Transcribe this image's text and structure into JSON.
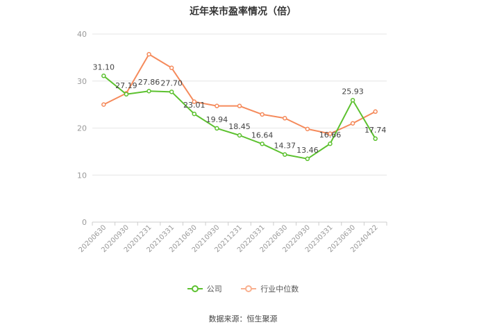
{
  "chart_data": {
    "type": "line",
    "title": "近年来市盈率情况（倍）",
    "categories": [
      "20200630",
      "20200930",
      "20201231",
      "20210331",
      "20210630",
      "20210930",
      "20211231",
      "20220331",
      "20220630",
      "20220930",
      "20230331",
      "20230630",
      "20240422"
    ],
    "series": [
      {
        "name": "公司",
        "color": "#5cc12f",
        "values": [
          31.1,
          27.19,
          27.86,
          27.7,
          23.01,
          19.94,
          18.45,
          16.64,
          14.37,
          13.46,
          16.66,
          25.93,
          17.74
        ],
        "labels": [
          "31.10",
          "27.19",
          "27.86",
          "27.70",
          "23.01",
          "19.94",
          "18.45",
          "16.64",
          "14.37",
          "13.46",
          "16.66",
          "25.93",
          "17.74"
        ]
      },
      {
        "name": "行业中位数",
        "color": "#f58a5b",
        "values": [
          25.0,
          27.4,
          35.7,
          32.8,
          25.6,
          24.7,
          24.7,
          22.9,
          22.1,
          19.8,
          18.8,
          21.0,
          23.5
        ]
      }
    ],
    "ylim": [
      0,
      40
    ],
    "yticks": [
      0,
      10,
      20,
      30,
      40
    ],
    "grid": true,
    "legend_position": "bottom"
  },
  "source": "数据来源：恒生聚源"
}
